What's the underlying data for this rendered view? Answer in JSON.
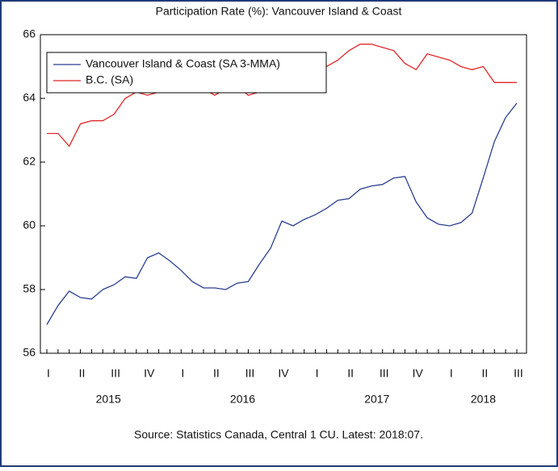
{
  "chart_data": {
    "type": "line",
    "title": "Participation Rate (%): Vancouver Island & Coast",
    "source": "Source: Statistics Canada, Central 1 CU. Latest: 2018:07.",
    "categories": [
      "I",
      null,
      null,
      "II",
      null,
      null,
      "III",
      null,
      null,
      "IV",
      null,
      null,
      "I",
      null,
      null,
      "II",
      null,
      null,
      "III",
      null,
      null,
      "IV",
      null,
      null,
      "I",
      null,
      null,
      "II",
      null,
      null,
      "III",
      null,
      null,
      "IV",
      null,
      null,
      "I",
      null,
      null,
      "II",
      null,
      null,
      "III"
    ],
    "years": [
      "2015",
      "2016",
      "2017",
      "2018"
    ],
    "series": [
      {
        "name": "Vancouver Island & Coast (SA 3-MMA)",
        "color": "#2b3f8f",
        "values": [
          56.9,
          57.5,
          57.95,
          57.75,
          57.7,
          58.0,
          58.15,
          58.4,
          58.35,
          59.0,
          59.15,
          58.9,
          58.6,
          58.25,
          58.05,
          58.05,
          58.0,
          58.2,
          58.25,
          58.8,
          59.3,
          60.15,
          60.0,
          60.2,
          60.35,
          60.55,
          60.8,
          60.85,
          61.15,
          61.25,
          61.3,
          61.5,
          61.55,
          60.75,
          60.25,
          60.05,
          60.0,
          60.1,
          60.4,
          61.5,
          62.65,
          63.4,
          63.85
        ]
      },
      {
        "name": "B.C. (SA)",
        "color": "#e0282a",
        "values": [
          62.9,
          62.9,
          62.5,
          63.2,
          63.3,
          63.3,
          63.5,
          64.0,
          64.2,
          64.1,
          64.2,
          64.2,
          64.3,
          64.5,
          64.3,
          64.1,
          64.3,
          64.4,
          64.1,
          64.2,
          64.6,
          64.8,
          64.8,
          64.9,
          65.0,
          65.0,
          65.2,
          65.5,
          65.7,
          65.7,
          65.6,
          65.5,
          65.1,
          64.9,
          65.4,
          65.3,
          65.2,
          65.0,
          64.9,
          65.0,
          64.5,
          64.5,
          64.5
        ]
      }
    ],
    "ylim": [
      56,
      66
    ],
    "yticks": [
      56,
      58,
      60,
      62,
      64,
      66
    ],
    "legend": "upper left"
  }
}
